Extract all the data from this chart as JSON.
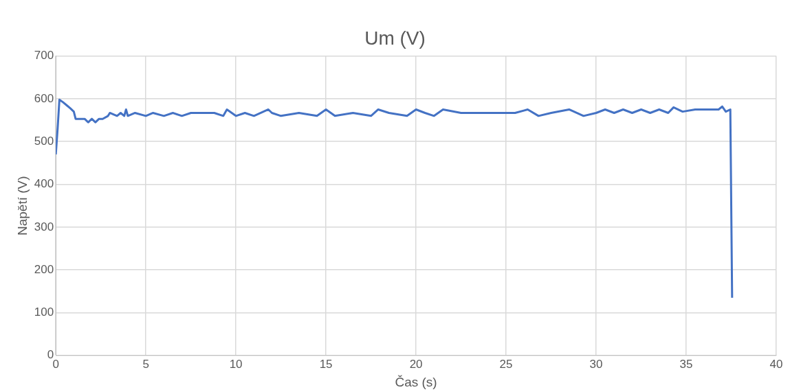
{
  "chart_data": {
    "type": "line",
    "title": "Um (V)",
    "xlabel": "Čas (s)",
    "ylabel": "Napětí (V)",
    "xlim": [
      0,
      40
    ],
    "xticks": [
      0,
      5,
      10,
      15,
      20,
      25,
      30,
      35,
      40
    ],
    "ylim": [
      0,
      700
    ],
    "yticks": [
      0,
      100,
      200,
      300,
      400,
      500,
      600,
      700
    ],
    "grid": true,
    "legend": false,
    "marker": "none",
    "series": [
      {
        "color": "#4472c4",
        "x": [
          0,
          0.1,
          0.2,
          0.4,
          0.6,
          0.8,
          1.0,
          1.1,
          1.6,
          1.8,
          2.0,
          2.2,
          2.4,
          2.6,
          2.9,
          3.0,
          3.4,
          3.6,
          3.8,
          3.9,
          4.0,
          4.4,
          5.0,
          5.4,
          6.0,
          6.5,
          7.0,
          7.5,
          8.0,
          8.8,
          9.3,
          9.5,
          10.0,
          10.5,
          11.0,
          11.8,
          12.0,
          12.5,
          13.5,
          14.5,
          15.0,
          15.5,
          16.5,
          17.5,
          17.9,
          18.5,
          19.5,
          20.0,
          20.5,
          21.0,
          21.5,
          22.5,
          23.5,
          24.5,
          25.5,
          26.2,
          26.8,
          27.5,
          28.5,
          29.3,
          30.0,
          30.5,
          31.0,
          31.5,
          32.0,
          32.5,
          33.0,
          33.5,
          34.0,
          34.3,
          34.8,
          35.5,
          36.0,
          36.5,
          36.8,
          37.0,
          37.2,
          37.45,
          37.55
        ],
        "values": [
          470,
          530,
          598,
          592,
          585,
          578,
          570,
          553,
          553,
          545,
          553,
          545,
          553,
          553,
          560,
          567,
          560,
          567,
          560,
          575,
          560,
          567,
          560,
          567,
          560,
          567,
          560,
          567,
          567,
          567,
          560,
          575,
          560,
          567,
          560,
          575,
          567,
          560,
          567,
          560,
          575,
          560,
          567,
          560,
          575,
          567,
          560,
          575,
          567,
          560,
          575,
          567,
          567,
          567,
          567,
          575,
          560,
          567,
          575,
          560,
          567,
          575,
          567,
          575,
          567,
          575,
          567,
          575,
          567,
          580,
          570,
          575,
          575,
          575,
          575,
          582,
          570,
          575,
          135
        ]
      }
    ]
  }
}
